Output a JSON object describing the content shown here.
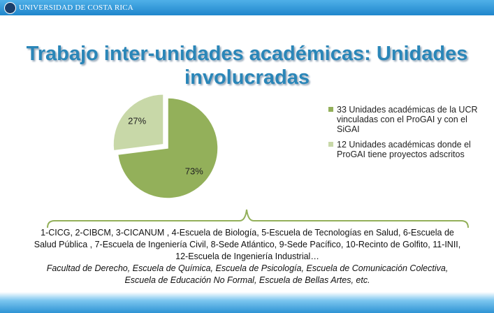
{
  "header": {
    "text": "UNIVERSIDAD DE COSTA RICA"
  },
  "chart_data": {
    "type": "pie",
    "title": "Trabajo inter-unidades académicas: Unidades involucradas",
    "categories": [
      "33 Unidades académicas de la UCR vinculadas con el ProGAI y con el SiGAI",
      "12 Unidades académicas donde el ProGAI tiene proyectos adscritos"
    ],
    "values": [
      73,
      27
    ],
    "value_labels": [
      "73%",
      "27%"
    ],
    "colors": [
      "#93b05a",
      "#c8d8a8"
    ],
    "exploded": [
      false,
      true
    ],
    "legend": "right"
  },
  "notes": {
    "units": "1-CICG, 2-CIBCM, 3-CICANUM , 4-Escuela de Biología, 5-Escuela de Tecnologías en Salud, 6-Escuela de Salud Pública , 7-Escuela de Ingeniería Civil, 8-Sede Atlántico, 9-Sede Pacífico, 10-Recinto de Golfito, 11-INII, 12-Escuela de Ingeniería Industrial…",
    "others": "Facultad de Derecho, Escuela de Química, Escuela de Psicología, Escuela de Comunicación Colectiva, Escuela de Educación No Formal, Escuela de Bellas Artes, etc."
  }
}
